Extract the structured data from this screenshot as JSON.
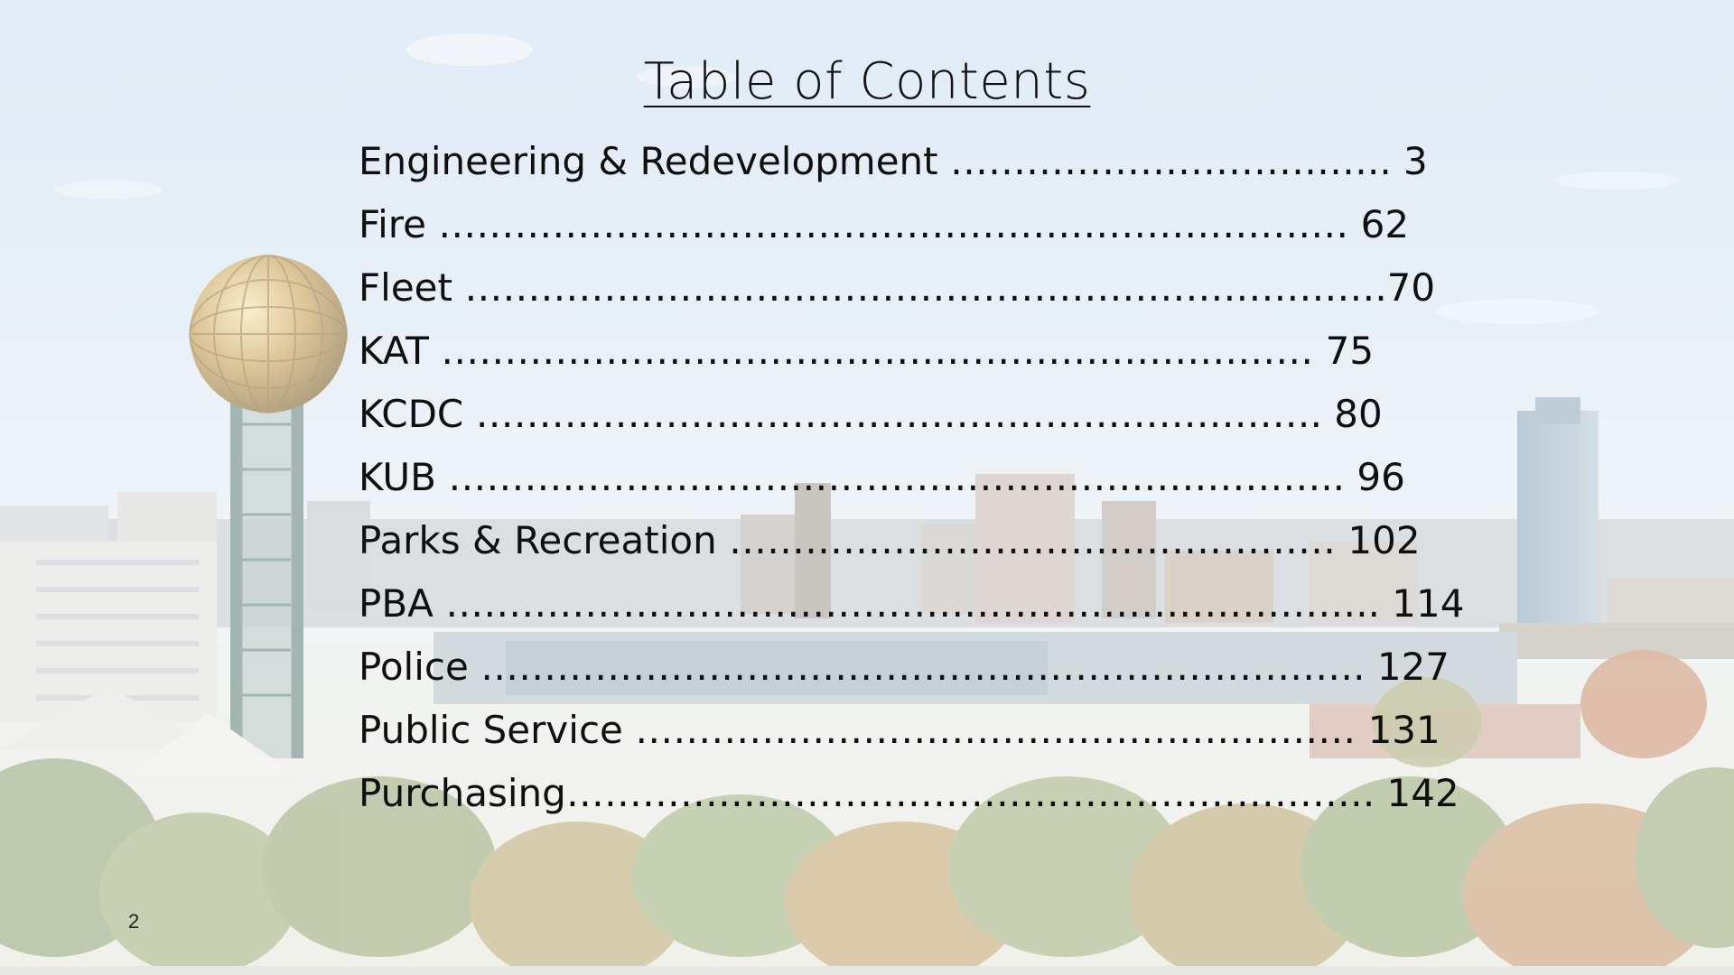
{
  "slide": {
    "title": "Table of Contents",
    "page_number": "2"
  },
  "toc": [
    {
      "text": "Engineering & Redevelopment …………………………….. 3"
    },
    {
      "text": "Fire ………………………………………………………………  62"
    },
    {
      "text": "Fleet ……………………………………………………………….70"
    },
    {
      "text": "KAT ……………………………………………………………  75"
    },
    {
      "text": "KCDC ………………………………………………………….  80"
    },
    {
      "text": "KUB ……………………………………………………………..  96"
    },
    {
      "text": "Parks & Recreation ………………………………………… 102"
    },
    {
      "text": "PBA ……………………………………………………………….. 114"
    },
    {
      "text": "Police ……………………………………………………………. 127"
    },
    {
      "text": "Public Service ………………………………………………… 131"
    },
    {
      "text": "Purchasing………………………………………………………. 142"
    }
  ]
}
